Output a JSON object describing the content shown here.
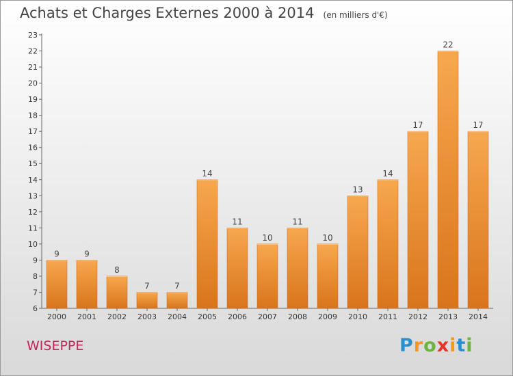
{
  "chart_data": {
    "type": "bar",
    "title": "Achats et Charges Externes 2000 à 2014",
    "subtitle": "(en milliers d'€)",
    "categories": [
      "2000",
      "2001",
      "2002",
      "2003",
      "2004",
      "2005",
      "2006",
      "2007",
      "2008",
      "2009",
      "2010",
      "2011",
      "2012",
      "2013",
      "2014"
    ],
    "values": [
      9,
      9,
      8,
      7,
      7,
      14,
      11,
      10,
      11,
      10,
      13,
      14,
      17,
      22,
      17
    ],
    "data_labels": [
      "9",
      "9",
      "8",
      "7",
      "7",
      "14",
      "11",
      "10",
      "11",
      "10",
      "13",
      "14",
      "17",
      "22",
      "17"
    ],
    "ylim": [
      6,
      23
    ],
    "yticks": [
      "6",
      "7",
      "8",
      "9",
      "10",
      "11",
      "12",
      "13",
      "14",
      "15",
      "16",
      "17",
      "18",
      "19",
      "20",
      "21",
      "22",
      "23"
    ],
    "grid": false,
    "legend": "none",
    "bar_color": "#f0923a",
    "xlabel": "",
    "ylabel": ""
  },
  "commune": "WISEPPE",
  "logo": {
    "letters": [
      "P",
      "r",
      "o",
      "x",
      "i",
      "t",
      "i"
    ],
    "colors": [
      "#2a8fd0",
      "#f39a1e",
      "#6cb33f",
      "#e5332a",
      "#f39a1e",
      "#2a8fd0",
      "#6cb33f"
    ]
  }
}
